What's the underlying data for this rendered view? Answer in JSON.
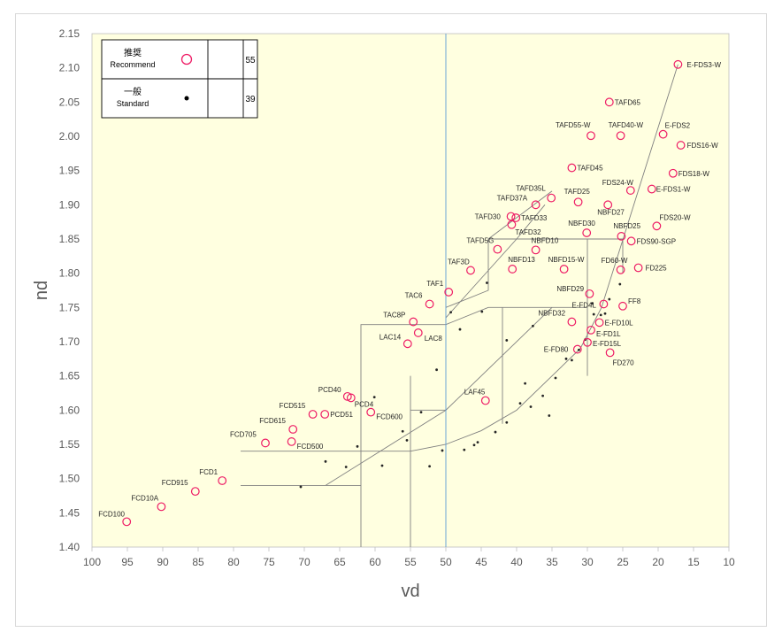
{
  "chart_data": {
    "type": "scatter",
    "xlabel": "vd",
    "ylabel": "nd",
    "xlim": [
      100,
      10
    ],
    "ylim": [
      1.4,
      2.15
    ],
    "x_reversed": true,
    "x_ticks": [
      "100",
      "95",
      "90",
      "85",
      "80",
      "75",
      "70",
      "65",
      "60",
      "55",
      "50",
      "45",
      "40",
      "35",
      "30",
      "25",
      "20",
      "15",
      "10"
    ],
    "y_ticks": [
      "1.40",
      "1.45",
      "1.50",
      "1.55",
      "1.60",
      "1.65",
      "1.70",
      "1.75",
      "1.80",
      "1.85",
      "1.90",
      "1.95",
      "2.00",
      "2.05",
      "2.10",
      "2.15"
    ],
    "legend": {
      "placement": "top-left",
      "rows": [
        {
          "label_jp": "推奨",
          "label_en": "Recommend",
          "count": "55",
          "marker": "open-circle"
        },
        {
          "label_jp": "一般",
          "label_en": "Standard",
          "count": "39",
          "marker": "dot"
        }
      ]
    },
    "colors": {
      "recommend": "#ee1c65",
      "standard": "#262626",
      "plot_bg": "#ffffe0",
      "lines": "#808080",
      "blue_line": "#5b9bd5"
    },
    "series": [
      {
        "name": "推奨",
        "marker": "open-circle",
        "points": [
          {
            "label": "FCD100",
            "x": 95.1,
            "y": 1.437
          },
          {
            "label": "FCD10A",
            "x": 90.2,
            "y": 1.459
          },
          {
            "label": "FCD915",
            "x": 85.4,
            "y": 1.4813
          },
          {
            "label": "FCD1",
            "x": 81.6,
            "y": 1.497
          },
          {
            "label": "FCD705",
            "x": 75.5,
            "y": 1.552
          },
          {
            "label": "FCD500",
            "x": 71.8,
            "y": 1.554
          },
          {
            "label": "FCD615",
            "x": 71.6,
            "y": 1.572
          },
          {
            "label": "FCD515",
            "x": 68.8,
            "y": 1.594
          },
          {
            "label": "PCD51",
            "x": 67.1,
            "y": 1.594
          },
          {
            "label": "PCD40",
            "x": 63.9,
            "y": 1.62
          },
          {
            "label": "PCD4",
            "x": 63.4,
            "y": 1.618
          },
          {
            "label": "FCD600",
            "x": 60.6,
            "y": 1.597
          },
          {
            "label": "LAC14",
            "x": 55.4,
            "y": 1.697
          },
          {
            "label": "LAC8",
            "x": 53.9,
            "y": 1.713
          },
          {
            "label": "TAC8P",
            "x": 54.6,
            "y": 1.729
          },
          {
            "label": "TAC6",
            "x": 52.3,
            "y": 1.755
          },
          {
            "label": "TAF1",
            "x": 49.6,
            "y": 1.7725
          },
          {
            "label": "TAF3D",
            "x": 46.5,
            "y": 1.8042
          },
          {
            "label": "LAF45",
            "x": 44.4,
            "y": 1.614
          },
          {
            "label": "TAFD5G",
            "x": 42.7,
            "y": 1.835
          },
          {
            "label": "TAFD30",
            "x": 40.8,
            "y": 1.883
          },
          {
            "label": "TAFD33",
            "x": 40.1,
            "y": 1.881
          },
          {
            "label": "TAFD32",
            "x": 40.7,
            "y": 1.871
          },
          {
            "label": "NBFD13",
            "x": 40.6,
            "y": 1.8061
          },
          {
            "label": "TAFD37A",
            "x": 37.3,
            "y": 1.9
          },
          {
            "label": "NBFD10",
            "x": 37.3,
            "y": 1.834
          },
          {
            "label": "TAFD35L",
            "x": 35.1,
            "y": 1.91
          },
          {
            "label": "NBFD15-W",
            "x": 33.3,
            "y": 1.806
          },
          {
            "label": "TAFD45",
            "x": 32.2,
            "y": 1.954
          },
          {
            "label": "TAFD25",
            "x": 31.3,
            "y": 1.904
          },
          {
            "label": "NBFD32",
            "x": 32.2,
            "y": 1.729
          },
          {
            "label": "E-FD80",
            "x": 31.4,
            "y": 1.6889
          },
          {
            "label": "NBFD30",
            "x": 30.1,
            "y": 1.859
          },
          {
            "label": "NBFD29",
            "x": 29.7,
            "y": 1.77
          },
          {
            "label": "E-FD1L",
            "x": 29.5,
            "y": 1.717
          },
          {
            "label": "E-FD15L",
            "x": 30.0,
            "y": 1.699
          },
          {
            "label": "TAFD55-W",
            "x": 29.5,
            "y": 2.001
          },
          {
            "label": "E-FD4L",
            "x": 27.7,
            "y": 1.755
          },
          {
            "label": "E-FD10L",
            "x": 28.3,
            "y": 1.728
          },
          {
            "label": "TAFD65",
            "x": 26.9,
            "y": 2.05
          },
          {
            "label": "NBFD27",
            "x": 27.1,
            "y": 1.9
          },
          {
            "label": "FD270",
            "x": 26.8,
            "y": 1.684
          },
          {
            "label": "TAFD40-W",
            "x": 25.3,
            "y": 2.001
          },
          {
            "label": "NBFD25",
            "x": 25.2,
            "y": 1.854
          },
          {
            "label": "FD60-W",
            "x": 25.3,
            "y": 1.805
          },
          {
            "label": "FF8",
            "x": 25.0,
            "y": 1.752
          },
          {
            "label": "FDS24-W",
            "x": 23.9,
            "y": 1.921
          },
          {
            "label": "FDS90-SGP",
            "x": 23.8,
            "y": 1.847
          },
          {
            "label": "FD225",
            "x": 22.8,
            "y": 1.808
          },
          {
            "label": "E-FDS1-W",
            "x": 20.9,
            "y": 1.923
          },
          {
            "label": "FDS20-W",
            "x": 20.2,
            "y": 1.869
          },
          {
            "label": "E-FDS2",
            "x": 19.3,
            "y": 2.003
          },
          {
            "label": "FDS16-W",
            "x": 16.8,
            "y": 1.987
          },
          {
            "label": "FDS18-W",
            "x": 17.9,
            "y": 1.946
          },
          {
            "label": "E-FDS3-W",
            "x": 17.2,
            "y": 2.105
          }
        ]
      },
      {
        "name": "一般",
        "marker": "dot",
        "points": [
          {
            "x": 70.5,
            "y": 1.488
          },
          {
            "x": 64.1,
            "y": 1.517
          },
          {
            "x": 59.0,
            "y": 1.519
          },
          {
            "x": 52.3,
            "y": 1.518
          },
          {
            "x": 47.4,
            "y": 1.542
          },
          {
            "x": 46.0,
            "y": 1.549
          },
          {
            "x": 43.0,
            "y": 1.568
          },
          {
            "x": 41.4,
            "y": 1.582
          },
          {
            "x": 38.0,
            "y": 1.605
          },
          {
            "x": 36.3,
            "y": 1.621
          },
          {
            "x": 35.4,
            "y": 1.592
          },
          {
            "x": 56.1,
            "y": 1.569
          },
          {
            "x": 60.1,
            "y": 1.619
          },
          {
            "x": 51.3,
            "y": 1.659
          },
          {
            "x": 41.4,
            "y": 1.702
          },
          {
            "x": 37.7,
            "y": 1.723
          },
          {
            "x": 48.0,
            "y": 1.718
          },
          {
            "x": 44.9,
            "y": 1.744
          },
          {
            "x": 49.3,
            "y": 1.743
          },
          {
            "x": 44.2,
            "y": 1.786
          },
          {
            "x": 34.5,
            "y": 1.647
          },
          {
            "x": 32.2,
            "y": 1.673
          },
          {
            "x": 29.1,
            "y": 1.74
          },
          {
            "x": 27.5,
            "y": 1.741
          },
          {
            "x": 26.9,
            "y": 1.762
          },
          {
            "x": 25.4,
            "y": 1.784
          },
          {
            "x": 31.2,
            "y": 1.688
          },
          {
            "x": 30.3,
            "y": 1.703
          },
          {
            "x": 29.3,
            "y": 1.756
          },
          {
            "x": 28.1,
            "y": 1.739
          },
          {
            "x": 33.0,
            "y": 1.675
          },
          {
            "x": 38.8,
            "y": 1.639
          },
          {
            "x": 39.5,
            "y": 1.61
          },
          {
            "x": 55.5,
            "y": 1.556
          },
          {
            "x": 62.5,
            "y": 1.547
          },
          {
            "x": 67.0,
            "y": 1.525
          },
          {
            "x": 53.5,
            "y": 1.597
          },
          {
            "x": 45.5,
            "y": 1.553
          },
          {
            "x": 50.5,
            "y": 1.541
          }
        ]
      }
    ],
    "region_lines": [
      [
        [
          17.2,
          2.105
        ],
        [
          28.0,
          1.75
        ],
        [
          31.0,
          1.69
        ],
        [
          35.0,
          1.65
        ],
        [
          40.0,
          1.6
        ],
        [
          45.0,
          1.57
        ],
        [
          50.0,
          1.55
        ],
        [
          55.0,
          1.54
        ],
        [
          79.0,
          1.54
        ]
      ],
      [
        [
          79.0,
          1.49
        ],
        [
          62.0,
          1.49
        ]
      ],
      [
        [
          67.0,
          1.49
        ],
        [
          50.0,
          1.6
        ],
        [
          35.0,
          1.75
        ]
      ],
      [
        [
          62.0,
          1.4
        ],
        [
          62.0,
          1.725
        ],
        [
          50.0,
          1.725
        ],
        [
          44.0,
          1.75
        ],
        [
          30.0,
          1.75
        ]
      ],
      [
        [
          55.0,
          1.4
        ],
        [
          55.0,
          1.65
        ]
      ],
      [
        [
          55.0,
          1.6
        ],
        [
          50.0,
          1.6
        ]
      ],
      [
        [
          50.0,
          1.75
        ],
        [
          44.0,
          1.775
        ],
        [
          44.0,
          1.85
        ],
        [
          25.0,
          1.85
        ],
        [
          25.0,
          1.8
        ]
      ],
      [
        [
          44.0,
          1.85
        ],
        [
          35.0,
          1.92
        ]
      ],
      [
        [
          42.0,
          1.75
        ],
        [
          42.0,
          1.58
        ]
      ],
      [
        [
          30.0,
          1.85
        ],
        [
          30.0,
          1.65
        ]
      ],
      [
        [
          50.0,
          1.735
        ],
        [
          40.0,
          1.85
        ],
        [
          36.0,
          1.9
        ]
      ]
    ]
  }
}
